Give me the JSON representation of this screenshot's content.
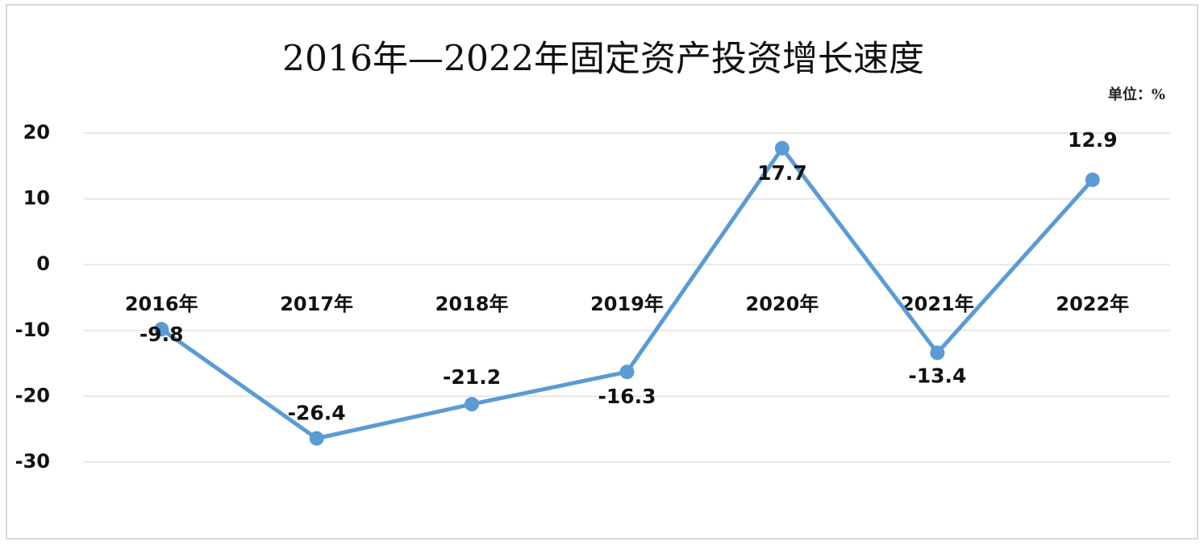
{
  "chart_data": {
    "type": "line",
    "title": "2016年—2022年固定资产投资增长速度",
    "unit_label": "单位：%",
    "categories": [
      "2016年",
      "2017年",
      "2018年",
      "2019年",
      "2020年",
      "2021年",
      "2022年"
    ],
    "series": [
      {
        "name": "固定资产投资增长速度",
        "color": "#5b9bd5",
        "values": [
          -9.8,
          -26.4,
          -21.2,
          -16.3,
          17.7,
          -13.4,
          12.9
        ]
      }
    ],
    "ylim": [
      -30,
      20
    ],
    "yticks": [
      -30,
      -20,
      -10,
      0,
      10,
      20
    ],
    "grid": true
  }
}
